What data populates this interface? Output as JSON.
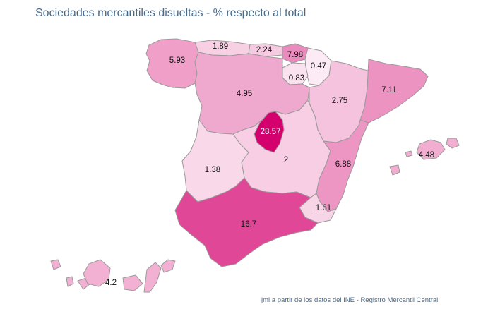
{
  "title": "Sociedades mercantiles disueltas - % respecto al total",
  "source": "jml a partir de los datos del INE - Registro Mercantil Central",
  "colors": {
    "background": "#ffffff",
    "border": "#9a9a9a",
    "title": "#4a6a8a",
    "scale_low": "#ffffff",
    "scale_high": "#d4006e"
  },
  "chart_data": {
    "type": "choropleth",
    "title": "Sociedades mercantiles disueltas - % respecto al total",
    "unit": "%",
    "regions": [
      {
        "id": "galicia",
        "value": 5.93
      },
      {
        "id": "asturias",
        "value": 1.89
      },
      {
        "id": "cantabria",
        "value": 2.24
      },
      {
        "id": "pais-vasco",
        "value": 7.98
      },
      {
        "id": "navarra",
        "value": 0.47
      },
      {
        "id": "la-rioja",
        "value": 0.83
      },
      {
        "id": "castilla-y-leon",
        "value": 4.95
      },
      {
        "id": "aragon",
        "value": 2.75
      },
      {
        "id": "cataluna",
        "value": 7.11
      },
      {
        "id": "madrid",
        "value": 28.57
      },
      {
        "id": "castilla-la-mancha",
        "value": 2
      },
      {
        "id": "extremadura",
        "value": 1.38
      },
      {
        "id": "comunidad-valenciana",
        "value": 6.88
      },
      {
        "id": "baleares",
        "value": 4.48
      },
      {
        "id": "murcia",
        "value": 1.61
      },
      {
        "id": "andalucia",
        "value": 16.7
      },
      {
        "id": "canarias",
        "value": 4.2
      }
    ]
  }
}
